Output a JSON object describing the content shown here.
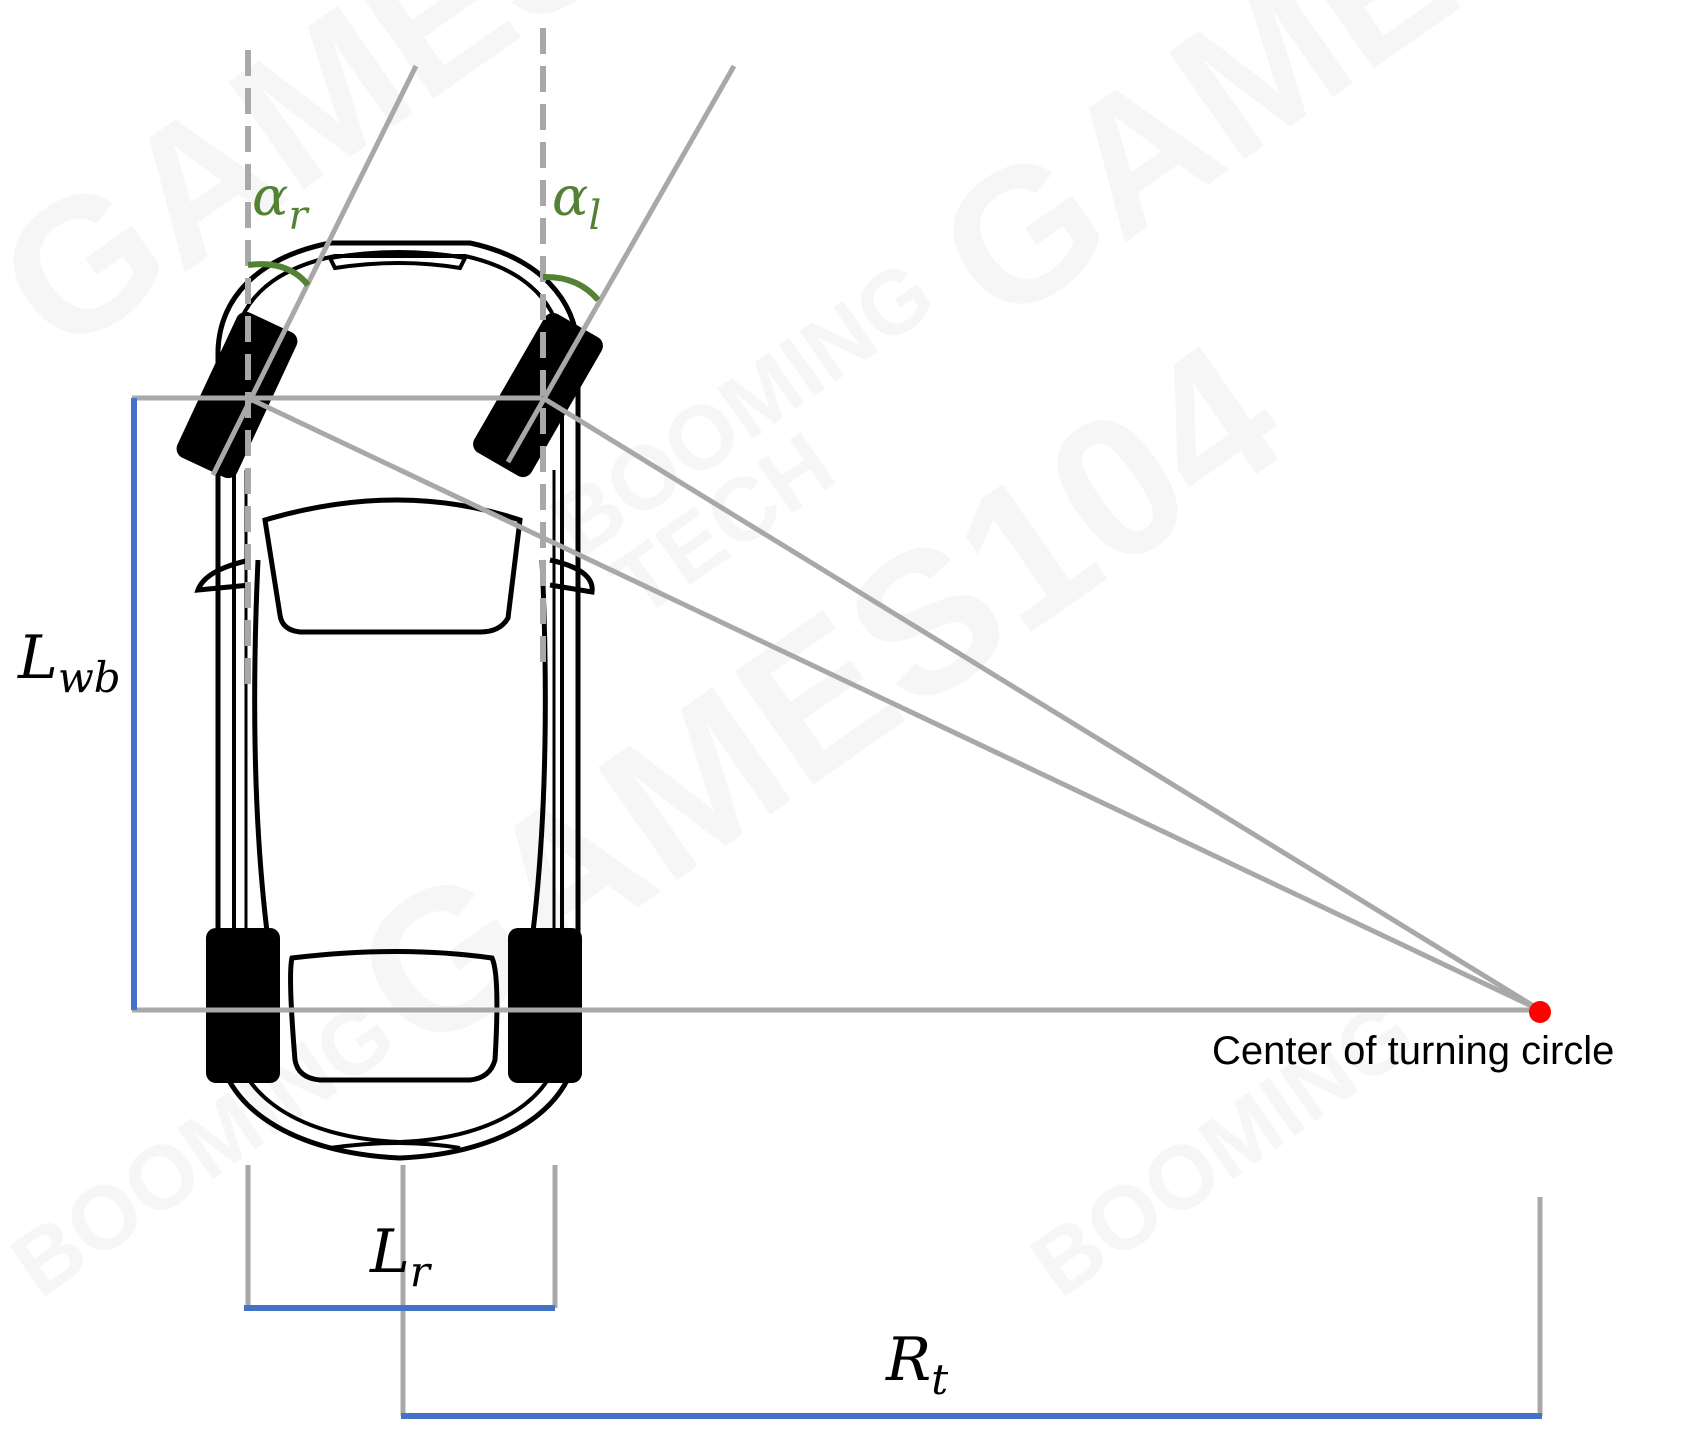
{
  "labels": {
    "alpha_r": {
      "base": "α",
      "sub": "r"
    },
    "alpha_l": {
      "base": "α",
      "sub": "l"
    },
    "L_wb": {
      "base": "L",
      "sub": "wb"
    },
    "L_r": {
      "base": "L",
      "sub": "r"
    },
    "R_t": {
      "base": "R",
      "sub": "t"
    },
    "center": "Center of turning circle"
  },
  "watermarks": [
    "GAMES",
    "BOOMING",
    "TECH",
    "GAMES104"
  ],
  "colors": {
    "construction": "#a8a8a8",
    "dimension": "#4472c4",
    "angle": "#548235",
    "center_point": "#ff0000",
    "car": "#000000"
  }
}
